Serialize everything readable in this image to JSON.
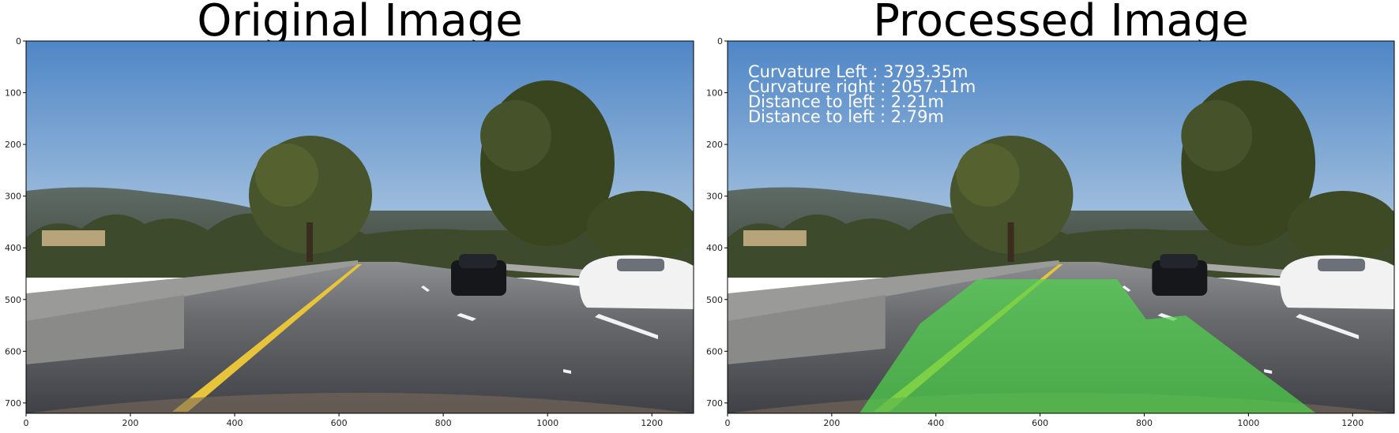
{
  "panels": {
    "left": {
      "title": "Original Image"
    },
    "right": {
      "title": "Processed Image",
      "overlay_lines": [
        "Curvature Left : 3793.35m",
        "Curvature right : 2057.11m",
        "Distance to left : 2.21m",
        "Distance to left : 2.79m"
      ]
    }
  },
  "axes": {
    "x_ticks": [
      "0",
      "200",
      "400",
      "600",
      "800",
      "1000",
      "1200"
    ],
    "y_ticks": [
      "0",
      "100",
      "200",
      "300",
      "400",
      "500",
      "600",
      "700"
    ],
    "x_range": [
      0,
      1280
    ],
    "y_range": [
      0,
      720
    ]
  },
  "colors": {
    "lane_overlay": "#4fd64a",
    "lane_yellow": "#e8c43a",
    "sky_top": "#4f86c6",
    "sky_bottom": "#b9cfe3",
    "road": "#5a5c62"
  }
}
